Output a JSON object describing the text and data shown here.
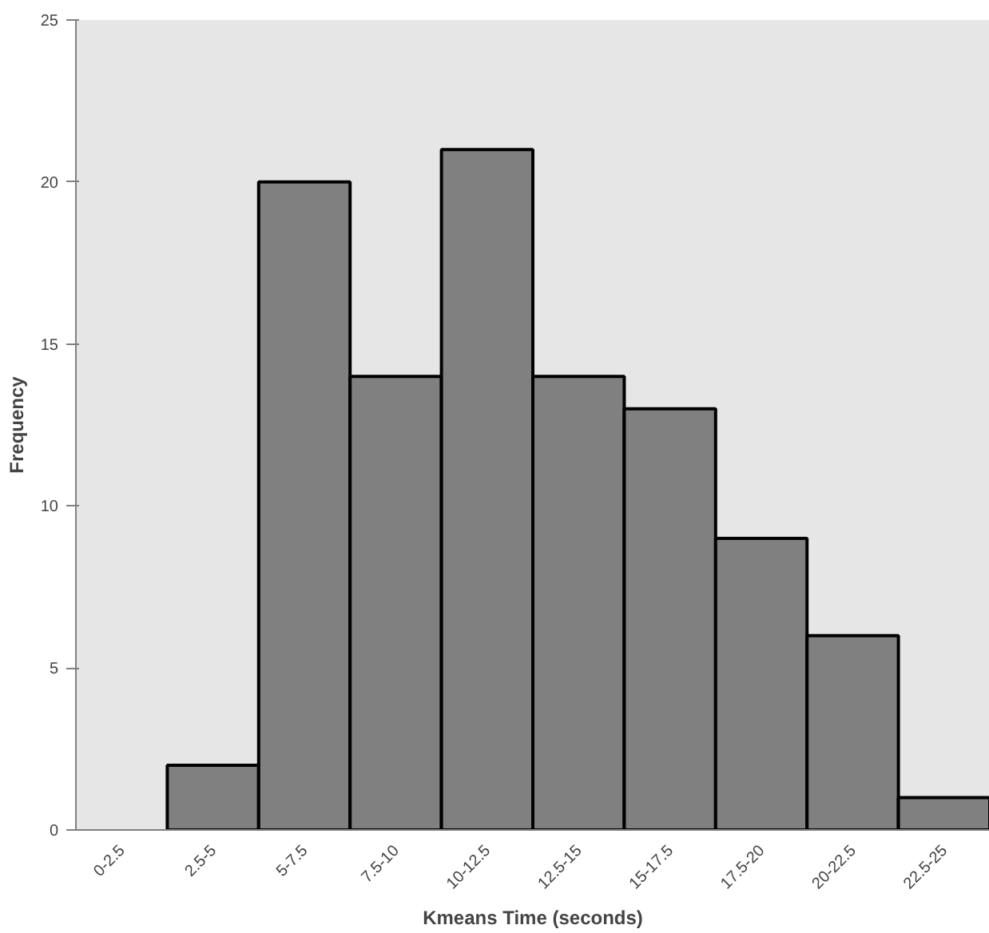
{
  "chart_data": {
    "type": "bar",
    "xlabel": "Kmeans Time (seconds)",
    "ylabel": "Frequency",
    "categories": [
      "0-2.5",
      "2.5-5",
      "5-7.5",
      "7.5-10",
      "10-12.5",
      "12.5-15",
      "15-17.5",
      "17.5-20",
      "20-22.5",
      "22.5-25"
    ],
    "values": [
      0,
      2,
      20,
      14,
      21,
      14,
      13,
      9,
      6,
      1
    ],
    "color": "#808080",
    "ylim": [
      0,
      25
    ],
    "yticks": [
      0,
      5,
      10,
      15,
      20,
      25
    ]
  }
}
